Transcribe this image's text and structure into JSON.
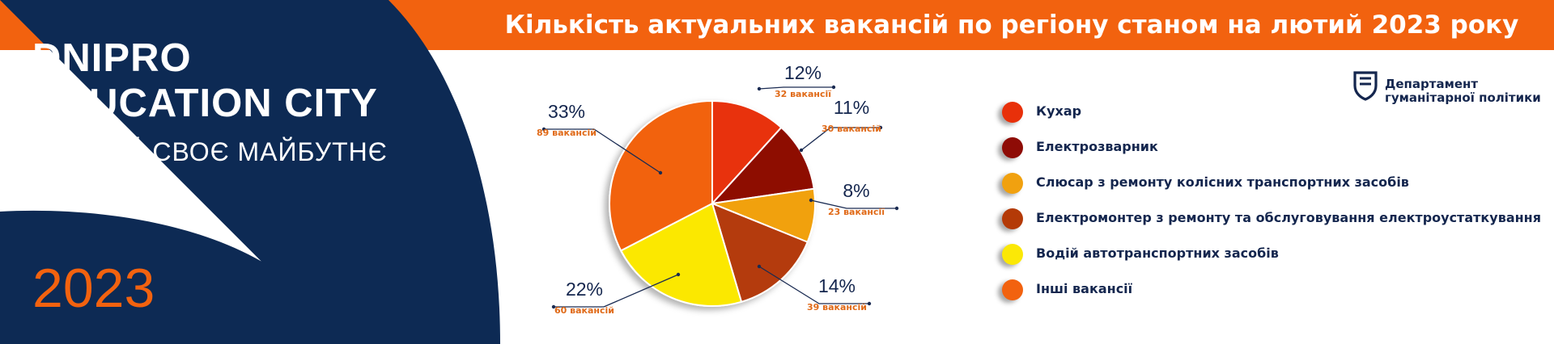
{
  "banner": {
    "title": "Кількість актуальних вакансій по регіону станом на лютий 2023 року"
  },
  "brand": {
    "line1": "DNIPRO",
    "line2": "EDUCATION CITY",
    "tagline": "ОБИРАЙ СВОЄ МАЙБУТНЄ",
    "year": "2023"
  },
  "department": {
    "line1": "Департамент",
    "line2": "гуманітарної політики"
  },
  "colors": {
    "navy": "#0d2a54",
    "orange": "#f2620f",
    "text": "#14264e"
  },
  "chart_data": {
    "type": "pie",
    "title": "Кількість актуальних вакансій по регіону станом на лютий 2023 року",
    "slices": [
      {
        "name": "Кухар",
        "percent_label": "12%",
        "count_label": "32 вакансії",
        "value": 32,
        "color": "#e8300a"
      },
      {
        "name": "Електрозварник",
        "percent_label": "11%",
        "count_label": "30 вакансій",
        "value": 30,
        "color": "#8e0c06"
      },
      {
        "name": "Слюсар з ремонту колісних транспортних засобів",
        "percent_label": "8%",
        "count_label": "23 вакансії",
        "value": 23,
        "color": "#f1a10f"
      },
      {
        "name": "Електромонтер з ремонту та обслуговування електроустаткування",
        "percent_label": "14%",
        "count_label": "39 вакансій",
        "value": 39,
        "color": "#b43a07"
      },
      {
        "name": "Водій автотранспортних засобів",
        "percent_label": "22%",
        "count_label": "60 вакансій",
        "value": 60,
        "color": "#fbe806"
      },
      {
        "name": "Інші вакансії",
        "percent_label": "33%",
        "count_label": "89 вакансій",
        "value": 89,
        "color": "#f2620f"
      }
    ],
    "legend_position": "right"
  }
}
